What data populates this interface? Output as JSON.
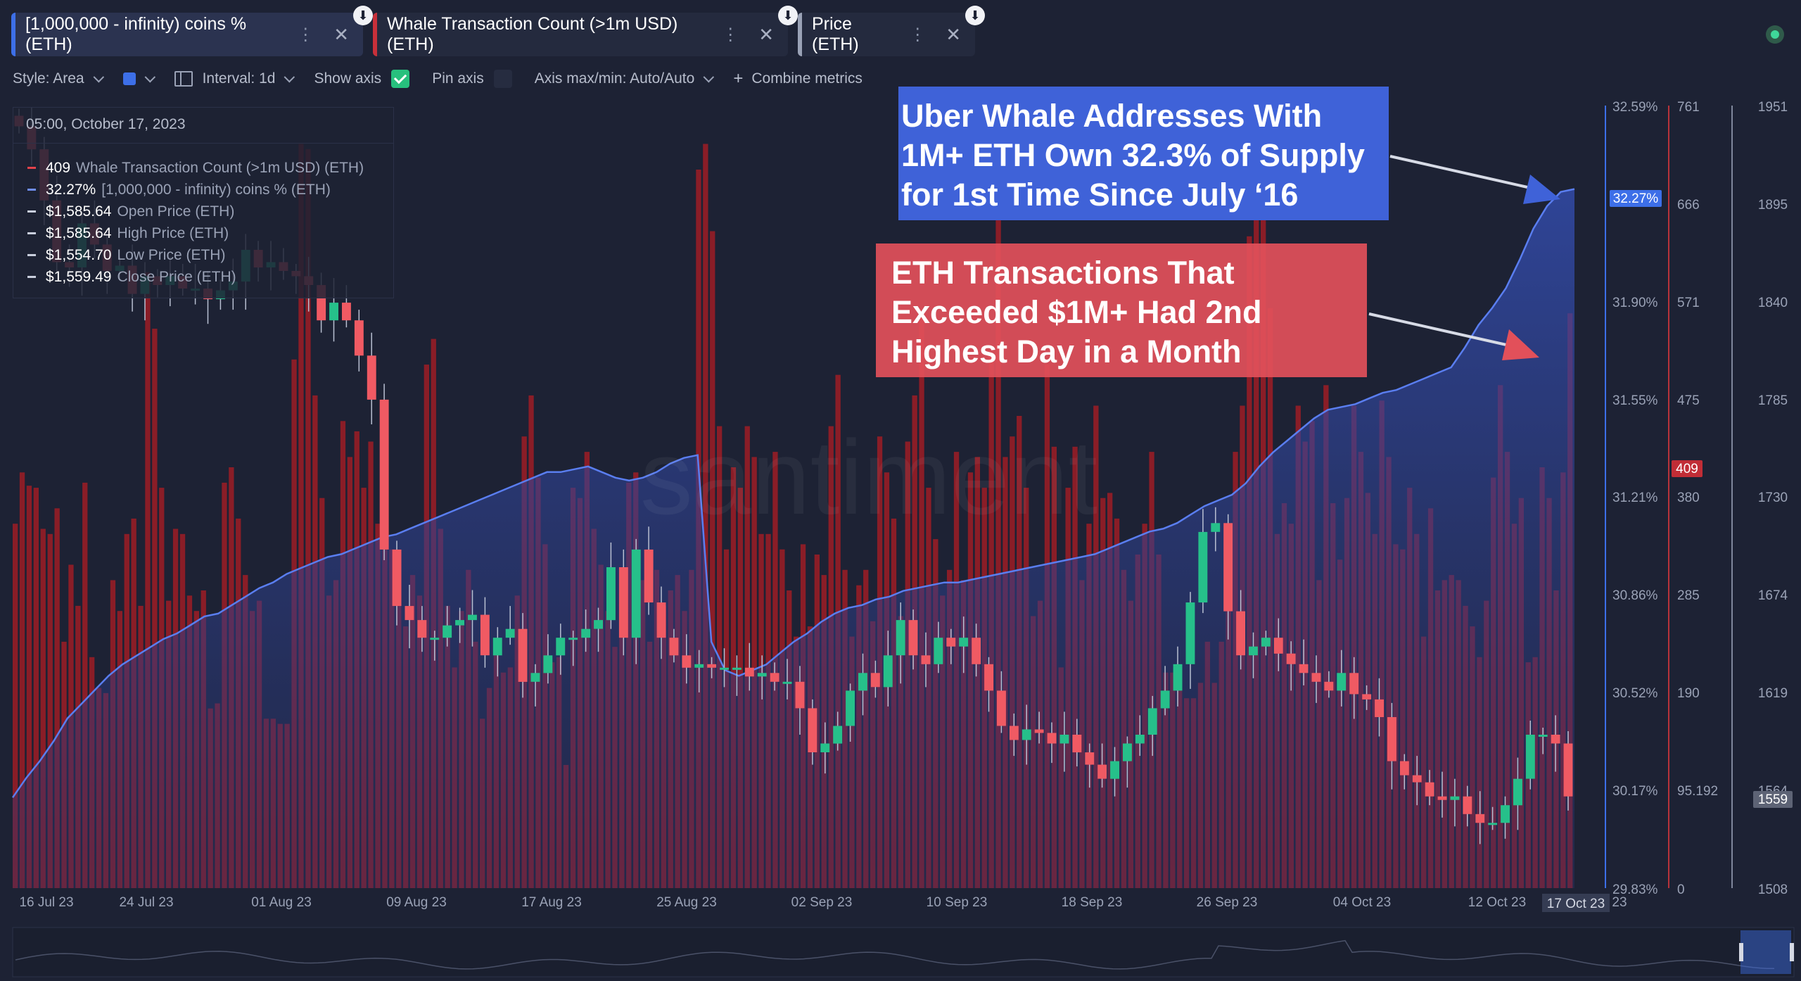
{
  "tabs": [
    {
      "label": "[1,000,000 - infinity) coins % (ETH)",
      "color": "#3d6fe8",
      "active": true
    },
    {
      "label": "Whale Transaction Count (>1m USD) (ETH)",
      "color": "#c8303a",
      "active": false
    },
    {
      "label": "Price (ETH)",
      "color": "#9aa2b6",
      "active": false
    }
  ],
  "toolbar": {
    "style_label": "Style: Area",
    "interval_label": "Interval: 1d",
    "show_axis_label": "Show axis",
    "pin_axis_label": "Pin axis",
    "axis_label": "Axis max/min: Auto/Auto",
    "combine_label": "Combine metrics"
  },
  "legend": {
    "timestamp": "05:00, October 17, 2023",
    "rows": [
      {
        "value": "409",
        "label": "Whale Transaction Count (>1m USD) (ETH)",
        "color": "#e2434b"
      },
      {
        "value": "32.27%",
        "label": "[1,000,000 - infinity) coins % (ETH)",
        "color": "#6e8df0"
      },
      {
        "value": "$1,585.64",
        "label": "Open Price (ETH)",
        "color": "#c9cfdd"
      },
      {
        "value": "$1,585.64",
        "label": "High Price (ETH)",
        "color": "#c9cfdd"
      },
      {
        "value": "$1,554.70",
        "label": "Low Price (ETH)",
        "color": "#c9cfdd"
      },
      {
        "value": "$1,559.49",
        "label": "Close Price (ETH)",
        "color": "#c9cfdd"
      }
    ]
  },
  "annotations": {
    "blue": {
      "lines": [
        "Uber Whale Addresses With",
        "1M+ ETH Own 32.3% of Supply",
        "for 1st Time Since July ‘16"
      ],
      "color": "#3f62d8"
    },
    "red": {
      "lines": [
        "ETH Transactions That",
        "Exceeded $1M+ Had 2nd",
        "Highest Day in a Month"
      ],
      "color": "#e2505a"
    }
  },
  "watermark": "santiment",
  "colors": {
    "up": "#26c08a",
    "down": "#f05a63",
    "bar": "#8a1d27",
    "area_line": "#5a7ef0"
  },
  "chart_data": {
    "type": "bar",
    "x_ticks": [
      "16 Jul 23",
      "24 Jul 23",
      "01 Aug 23",
      "09 Aug 23",
      "17 Aug 23",
      "25 Aug 23",
      "02 Sep 23",
      "10 Sep 23",
      "18 Sep 23",
      "26 Sep 23",
      "04 Oct 23",
      "12 Oct 23",
      "23"
    ],
    "x_highlight": "17 Oct 23",
    "axes": {
      "pct": {
        "ticks": [
          "32.59%",
          "31.90%",
          "31.55%",
          "31.21%",
          "30.86%",
          "30.52%",
          "30.17%",
          "29.83%"
        ],
        "range": [
          29.83,
          32.59
        ],
        "current": "32.27%"
      },
      "count": {
        "ticks": [
          "761",
          "666",
          "571",
          "475",
          "380",
          "285",
          "190",
          "95.192",
          "0"
        ],
        "range": [
          0,
          761
        ],
        "current": "409"
      },
      "price": {
        "ticks": [
          "1951",
          "1895",
          "1840",
          "1785",
          "1730",
          "1674",
          "1619",
          "1564",
          "1508"
        ],
        "range": [
          1508,
          1951
        ],
        "current": "1559"
      }
    },
    "series": [
      {
        "name": "Whale Transaction Count (>1m USD) (ETH)",
        "axis": "count",
        "values": [
          355,
          405,
          392,
          390,
          350,
          345,
          370,
          240,
          315,
          275,
          395,
          225,
          195,
          190,
          300,
          270,
          345,
          360,
          275,
          600,
          545,
          390,
          280,
          350,
          345,
          285,
          270,
          290,
          175,
          180,
          395,
          410,
          360,
          305,
          270,
          280,
          165,
          165,
          160,
          160,
          515,
          725,
          720,
          480,
          380,
          285,
          300,
          455,
          420,
          445,
          390,
          435,
          355,
          340,
          330,
          275,
          255,
          305,
          285,
          510,
          535,
          350,
          275,
          215,
          270,
          310,
          240,
          165,
          195,
          235,
          210,
          215,
          285,
          440,
          480,
          400,
          335,
          220,
          225,
          120,
          390,
          380,
          425,
          350,
          315,
          270,
          235,
          255,
          395,
          405,
          300,
          240,
          310,
          275,
          290,
          305,
          270,
          310,
          700,
          725,
          640,
          450,
          330,
          410,
          390,
          450,
          420,
          345,
          345,
          425,
          330,
          290,
          245,
          335,
          255,
          325,
          305,
          450,
          500,
          310,
          245,
          295,
          310,
          260,
          440,
          405,
          360,
          265,
          435,
          480,
          560,
          390,
          340,
          285,
          310,
          425,
          300,
          405,
          420,
          390,
          520,
          655,
          420,
          440,
          460,
          390,
          265,
          280,
          510,
          430,
          215,
          390,
          430,
          300,
          355,
          470,
          380,
          385,
          360,
          310,
          280,
          325,
          355,
          425,
          325,
          210,
          210,
          200,
          185,
          185,
          200,
          240,
          200,
          240,
          315,
          425,
          470,
          635,
          710,
          690,
          565,
          345,
          375,
          355,
          470,
          435,
          455,
          300,
          490,
          375,
          320,
          380,
          470,
          425,
          385,
          345,
          475,
          420,
          335,
          330,
          390,
          345,
          245,
          370,
          290,
          300,
          305,
          300,
          275,
          255,
          225,
          280,
          400,
          490,
          425,
          355,
          380,
          220,
          225,
          410,
          380,
          290,
          405,
          560
        ]
      },
      {
        "name": "[1,000,000 - infinity) coins % (ETH)",
        "axis": "pct",
        "values": [
          30.15,
          30.22,
          30.28,
          30.35,
          30.43,
          30.48,
          30.53,
          30.58,
          30.62,
          30.65,
          30.68,
          30.71,
          30.73,
          30.76,
          30.79,
          30.8,
          30.83,
          30.86,
          30.89,
          30.91,
          30.94,
          30.96,
          30.98,
          31.0,
          31.01,
          31.03,
          31.05,
          31.07,
          31.08,
          31.1,
          31.12,
          31.14,
          31.16,
          31.18,
          31.2,
          31.22,
          31.24,
          31.26,
          31.28,
          31.3,
          31.3,
          31.31,
          31.32,
          31.3,
          31.28,
          31.27,
          31.28,
          31.3,
          31.33,
          31.35,
          31.36,
          30.7,
          30.6,
          30.58,
          30.6,
          30.62,
          30.66,
          30.7,
          30.73,
          30.77,
          30.8,
          30.82,
          30.83,
          30.85,
          30.86,
          30.88,
          30.89,
          30.9,
          30.91,
          30.91,
          30.92,
          30.93,
          30.94,
          30.95,
          30.96,
          30.97,
          30.98,
          30.99,
          31.0,
          31.01,
          31.03,
          31.05,
          31.07,
          31.09,
          31.1,
          31.12,
          31.15,
          31.18,
          31.2,
          31.22,
          31.26,
          31.32,
          31.37,
          31.41,
          31.45,
          31.49,
          31.52,
          31.53,
          31.54,
          31.56,
          31.58,
          31.59,
          31.61,
          31.63,
          31.65,
          31.67,
          31.74,
          31.82,
          31.88,
          31.95,
          32.05,
          32.16,
          32.24,
          32.29,
          32.3
        ]
      },
      {
        "name": "Price (ETH)",
        "axis": "price",
        "type": "candlestick",
        "values": [
          1940,
          1927,
          1898,
          1863,
          1860,
          1885,
          1873,
          1858,
          1861,
          1845,
          1855,
          1850,
          1855,
          1848,
          1848,
          1842,
          1847,
          1852,
          1870,
          1860,
          1863,
          1858,
          1855,
          1850,
          1830,
          1840,
          1830,
          1810,
          1785,
          1700,
          1668,
          1660,
          1650,
          1650,
          1657,
          1660,
          1663,
          1640,
          1650,
          1655,
          1625,
          1630,
          1640,
          1650,
          1650,
          1655,
          1660,
          1690,
          1650,
          1700,
          1670,
          1650,
          1640,
          1633,
          1635,
          1633,
          1633,
          1633,
          1628,
          1630,
          1625,
          1625,
          1610,
          1585,
          1590,
          1600,
          1620,
          1630,
          1622,
          1640,
          1660,
          1640,
          1635,
          1650,
          1645,
          1650,
          1635,
          1620,
          1600,
          1592,
          1598,
          1596,
          1590,
          1595,
          1585,
          1578,
          1570,
          1580,
          1590,
          1595,
          1610,
          1620,
          1635,
          1670,
          1710,
          1715,
          1665,
          1640,
          1645,
          1650,
          1641,
          1635,
          1630,
          1625,
          1620,
          1630,
          1618,
          1615,
          1605,
          1580,
          1572,
          1568,
          1560,
          1558,
          1560,
          1550,
          1545,
          1545,
          1555,
          1570,
          1595,
          1595,
          1590,
          1560
        ]
      }
    ]
  }
}
